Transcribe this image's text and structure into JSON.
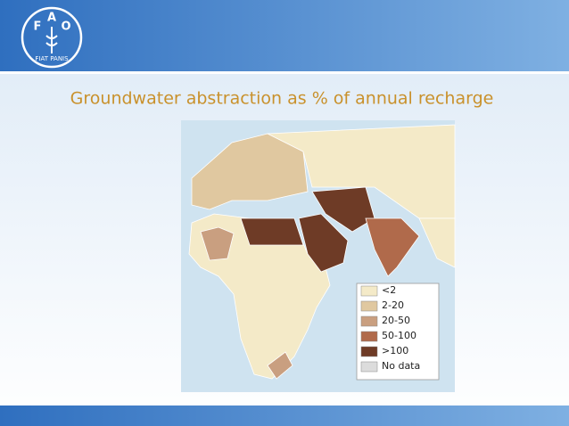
{
  "slide": {
    "logo": {
      "letters": [
        "F",
        "A",
        "O"
      ],
      "motto": "FIAT PANIS"
    },
    "title": "Groundwater abstraction as % of annual recharge",
    "map": {
      "legend": [
        {
          "label": "<2",
          "color": "#f4eac8"
        },
        {
          "label": "2-20",
          "color": "#e0c8a0"
        },
        {
          "label": "20-50",
          "color": "#c99f80"
        },
        {
          "label": "50-100",
          "color": "#b06a4b"
        },
        {
          "label": ">100",
          "color": "#6e3b26"
        },
        {
          "label": "No data",
          "color": "#dcdcdc"
        }
      ]
    }
  }
}
